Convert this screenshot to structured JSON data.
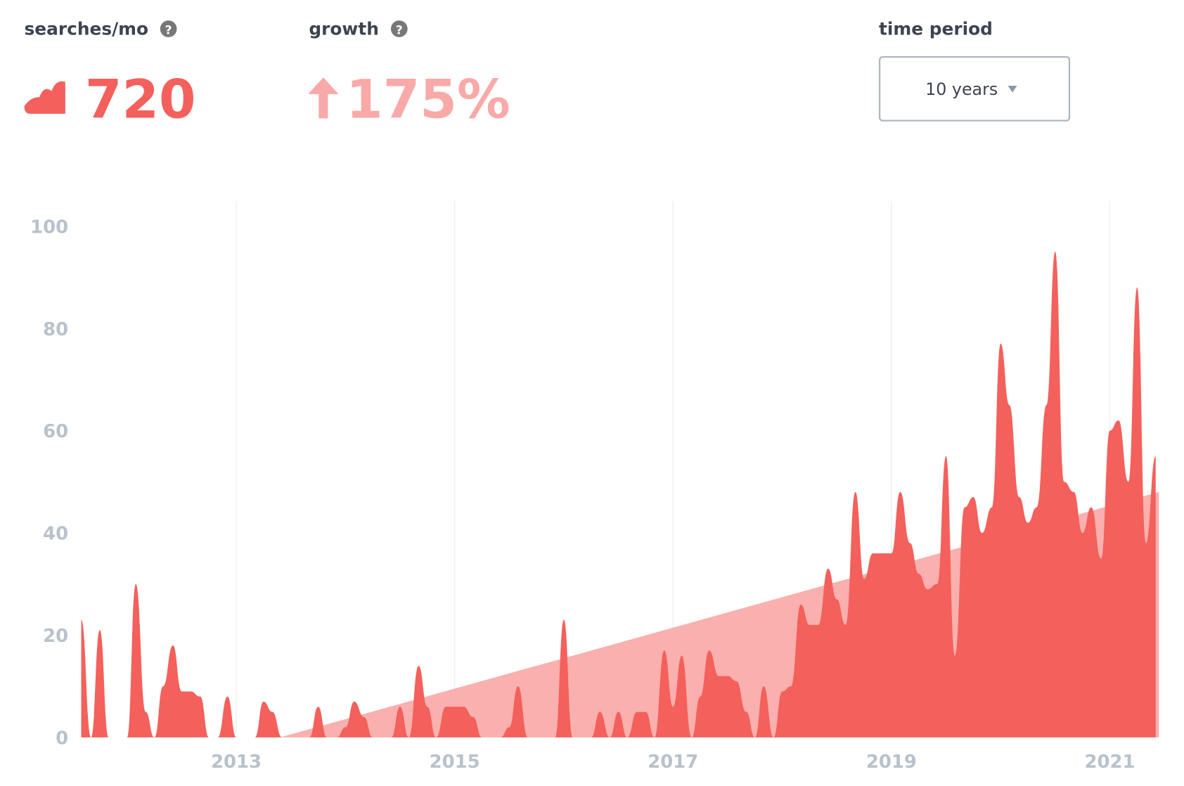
{
  "header": {
    "searches_label": "searches/mo",
    "searches_value": "720",
    "growth_label": "growth",
    "growth_value": "175%",
    "period_label": "time period",
    "period_value": "10 years"
  },
  "chart_data": {
    "type": "area",
    "color": "#f4605b",
    "x": [
      2011.58,
      2011.67,
      2011.75,
      2011.83,
      2011.92,
      2012,
      2012.08,
      2012.17,
      2012.25,
      2012.33,
      2012.42,
      2012.5,
      2012.58,
      2012.67,
      2012.75,
      2012.83,
      2012.92,
      2013,
      2013.08,
      2013.17,
      2013.25,
      2013.33,
      2013.42,
      2013.5,
      2013.58,
      2013.67,
      2013.75,
      2013.83,
      2013.92,
      2014,
      2014.08,
      2014.17,
      2014.25,
      2014.33,
      2014.42,
      2014.5,
      2014.58,
      2014.67,
      2014.75,
      2014.83,
      2014.92,
      2015,
      2015.08,
      2015.17,
      2015.25,
      2015.33,
      2015.42,
      2015.5,
      2015.58,
      2015.67,
      2015.75,
      2015.83,
      2015.92,
      2016,
      2016.08,
      2016.17,
      2016.25,
      2016.33,
      2016.42,
      2016.5,
      2016.58,
      2016.67,
      2016.75,
      2016.83,
      2016.92,
      2017,
      2017.08,
      2017.17,
      2017.25,
      2017.33,
      2017.42,
      2017.5,
      2017.58,
      2017.67,
      2017.75,
      2017.83,
      2017.92,
      2018,
      2018.08,
      2018.17,
      2018.25,
      2018.33,
      2018.42,
      2018.5,
      2018.58,
      2018.67,
      2018.75,
      2018.83,
      2018.92,
      2019,
      2019.08,
      2019.17,
      2019.25,
      2019.33,
      2019.42,
      2019.5,
      2019.58,
      2019.67,
      2019.75,
      2019.83,
      2019.92,
      2020,
      2020.08,
      2020.17,
      2020.25,
      2020.33,
      2020.42,
      2020.5,
      2020.58,
      2020.67,
      2020.75,
      2020.83,
      2020.92,
      2021,
      2021.08,
      2021.17,
      2021.25,
      2021.33,
      2021.42
    ],
    "values": [
      23,
      0,
      21,
      0,
      0,
      0,
      30,
      5,
      0,
      10,
      18,
      9,
      9,
      8,
      0,
      0,
      8,
      0,
      0,
      0,
      7,
      5,
      0,
      0,
      0,
      0,
      6,
      0,
      0,
      2,
      7,
      4,
      0,
      0,
      0,
      6,
      0,
      14,
      6,
      0,
      6,
      6,
      6,
      4,
      0,
      0,
      0,
      2,
      10,
      0,
      0,
      0,
      0,
      23,
      0,
      0,
      0,
      5,
      0,
      5,
      0,
      5,
      5,
      0,
      17,
      6,
      16,
      0,
      8,
      17,
      12,
      12,
      11,
      5,
      0,
      10,
      0,
      9,
      10,
      26,
      22,
      22,
      33,
      27,
      22,
      48,
      31,
      36,
      36,
      36,
      48,
      38,
      32,
      29,
      30,
      55,
      16,
      45,
      47,
      40,
      45,
      77,
      65,
      47,
      42,
      45,
      65,
      95,
      50,
      48,
      40,
      45,
      35,
      60,
      62,
      50,
      88,
      38,
      55
    ],
    "trend": {
      "color": "#f9b0ae",
      "x": [
        2013.4,
        2021.45
      ],
      "values": [
        0,
        48
      ]
    },
    "xlim": [
      2011.58,
      2021.45
    ],
    "xticks": [
      2013,
      2015,
      2017,
      2019,
      2021
    ],
    "ylim": [
      0,
      100
    ],
    "yticks": [
      0,
      20,
      40,
      60,
      80,
      100
    ],
    "grid": true
  }
}
